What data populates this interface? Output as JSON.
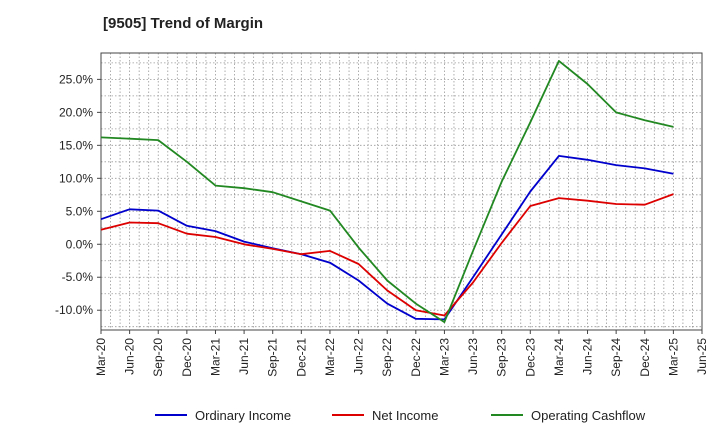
{
  "chart_data": {
    "type": "line",
    "title": "[9505]  Trend of Margin",
    "xlabel": "",
    "ylabel": "",
    "x": [
      "Mar-20",
      "Jun-20",
      "Sep-20",
      "Dec-20",
      "Mar-21",
      "Jun-21",
      "Sep-21",
      "Dec-21",
      "Mar-22",
      "Jun-22",
      "Sep-22",
      "Dec-22",
      "Mar-23",
      "Jun-23",
      "Sep-23",
      "Dec-23",
      "Mar-24",
      "Jun-24",
      "Sep-24",
      "Dec-24",
      "Mar-25",
      "Jun-25"
    ],
    "ylim": [
      -13,
      29
    ],
    "yticks": [
      25,
      20,
      15,
      10,
      5,
      0,
      -5,
      -10
    ],
    "ytick_labels": [
      "25.0%",
      "20.0%",
      "15.0%",
      "10.0%",
      "5.0%",
      "0.0%",
      "-5.0%",
      "-10.0%"
    ],
    "grid": true,
    "legend_position": "bottom",
    "series": [
      {
        "name": "Ordinary Income",
        "color": "#0000cc",
        "values": [
          3.8,
          5.3,
          5.1,
          2.8,
          2.0,
          0.4,
          -0.6,
          -1.5,
          -2.8,
          -5.5,
          -9.0,
          -11.3,
          -11.4,
          -5.0,
          1.5,
          8.0,
          13.4,
          12.8,
          12.0,
          11.5,
          10.7,
          null
        ]
      },
      {
        "name": "Net Income",
        "color": "#dd0000",
        "values": [
          2.2,
          3.3,
          3.2,
          1.6,
          1.1,
          0.0,
          -0.7,
          -1.5,
          -1.0,
          -3.0,
          -7.0,
          -10.0,
          -10.8,
          -5.8,
          0.2,
          5.8,
          7.0,
          6.6,
          6.1,
          6.0,
          7.6,
          null
        ]
      },
      {
        "name": "Operating Cashflow",
        "color": "#228822",
        "values": [
          16.2,
          16.0,
          15.8,
          12.5,
          8.9,
          8.5,
          7.9,
          6.5,
          5.1,
          -0.5,
          -5.5,
          -9.0,
          -11.8,
          -1.0,
          9.5,
          18.5,
          27.8,
          24.3,
          20.0,
          18.8,
          17.8,
          null
        ]
      }
    ]
  }
}
